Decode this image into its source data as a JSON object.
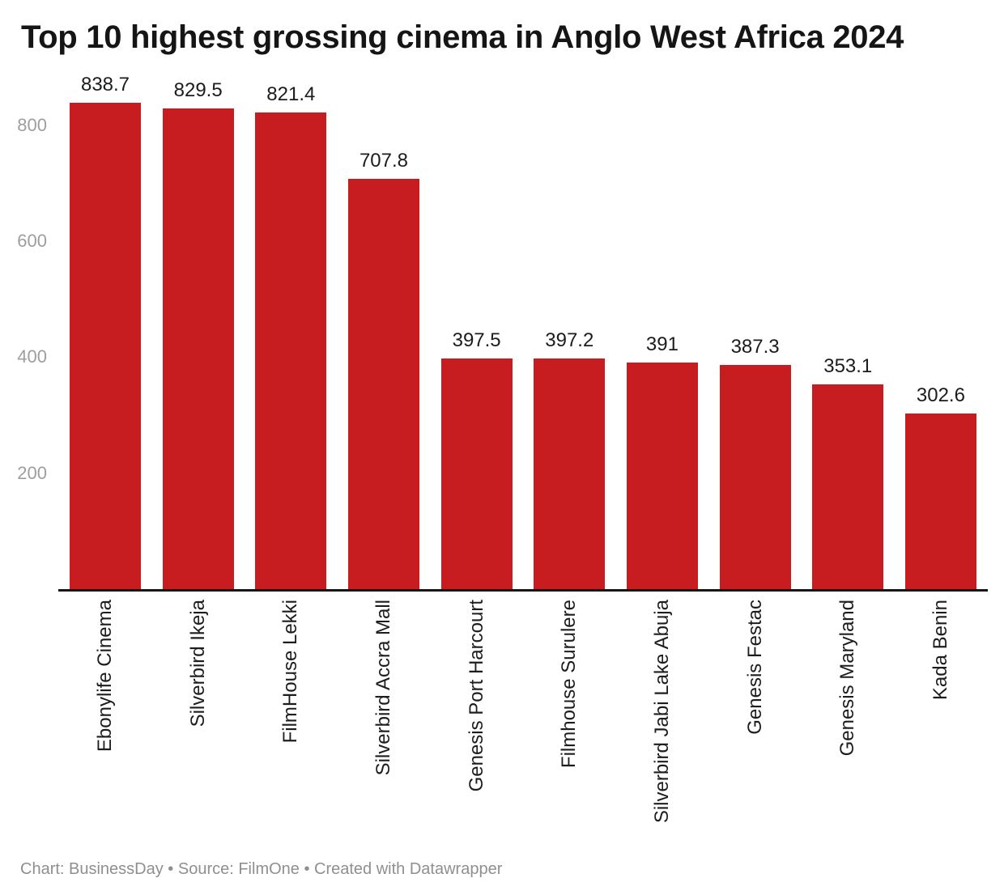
{
  "header": {
    "title": "Top 10 highest grossing cinema in Anglo West Africa 2024"
  },
  "colors": {
    "bar": "#c81d20",
    "axis": "#161616",
    "title_text": "#151515",
    "value_label": "#1c1c1c",
    "category_label": "#1d1d1d",
    "tick_label": "#9e9e9e",
    "footer_text": "#8f8f8f",
    "background": "#ffffff"
  },
  "chart_data": {
    "type": "bar",
    "title": "Top 10 highest grossing cinema in Anglo West Africa 2024",
    "categories": [
      "Ebonylife Cinema",
      "Silverbird Ikeja",
      "FilmHouse Lekki",
      "Silverbird Accra Mall",
      "Genesis Port Harcourt",
      "Filmhouse Surulere",
      "Silverbird Jabi Lake Abuja",
      "Genesis Festac",
      "Genesis Maryland",
      "Kada Benin"
    ],
    "values": [
      838.7,
      829.5,
      821.4,
      707.8,
      397.5,
      397.2,
      391,
      387.3,
      353.1,
      302.6
    ],
    "value_labels": [
      "838.7",
      "829.5",
      "821.4",
      "707.8",
      "397.5",
      "397.2",
      "391",
      "387.3",
      "353.1",
      "302.6"
    ],
    "y_ticks": [
      200,
      400,
      600,
      800
    ],
    "ylim": [
      0,
      838.7
    ],
    "xlabel": "",
    "ylabel": "",
    "grid": false,
    "legend": null,
    "category_label_rotation": -90
  },
  "footer": {
    "text": "Chart: BusinessDay • Source: FilmOne • Created with Datawrapper"
  }
}
